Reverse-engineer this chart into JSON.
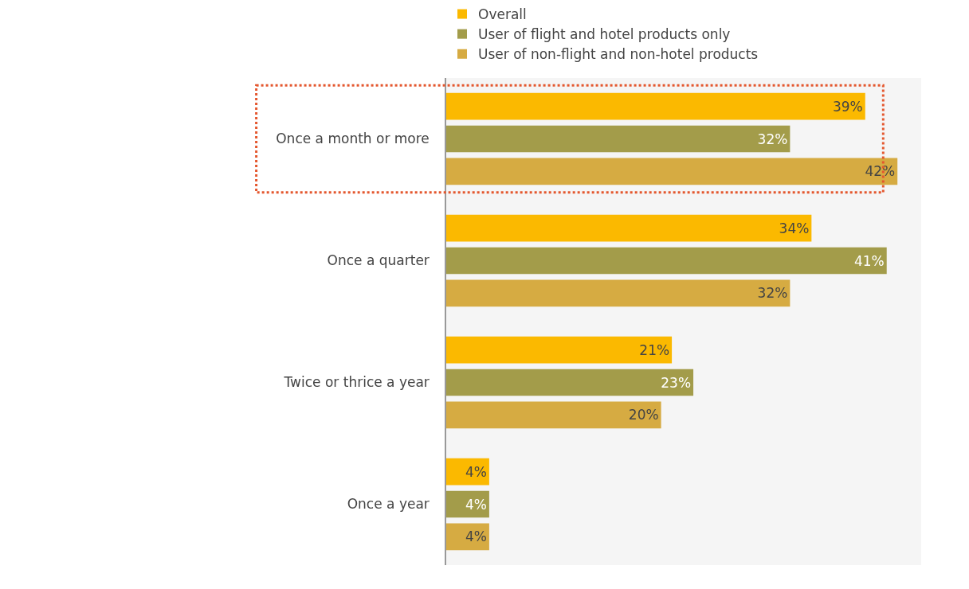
{
  "chart_data": {
    "type": "bar",
    "orientation": "horizontal",
    "categories": [
      "Once a month or more",
      "Once a quarter",
      "Twice or thrice a year",
      "Once a year"
    ],
    "series": [
      {
        "name": "Overall",
        "color": "#fbb900",
        "values": [
          39,
          34,
          21,
          4
        ],
        "value_labels": [
          "39%",
          "34%",
          "21%",
          "4%"
        ]
      },
      {
        "name": "User of flight and hotel products only",
        "color": "#a39c4a",
        "values": [
          32,
          41,
          23,
          4
        ],
        "value_labels": [
          "32%",
          "41%",
          "23%",
          "4%"
        ]
      },
      {
        "name": "User of non-flight and non-hotel products",
        "color": "#d6ab42",
        "values": [
          42,
          32,
          20,
          4
        ],
        "value_labels": [
          "42%",
          "32%",
          "20%",
          "4%"
        ]
      }
    ],
    "legend": "top"
  }
}
